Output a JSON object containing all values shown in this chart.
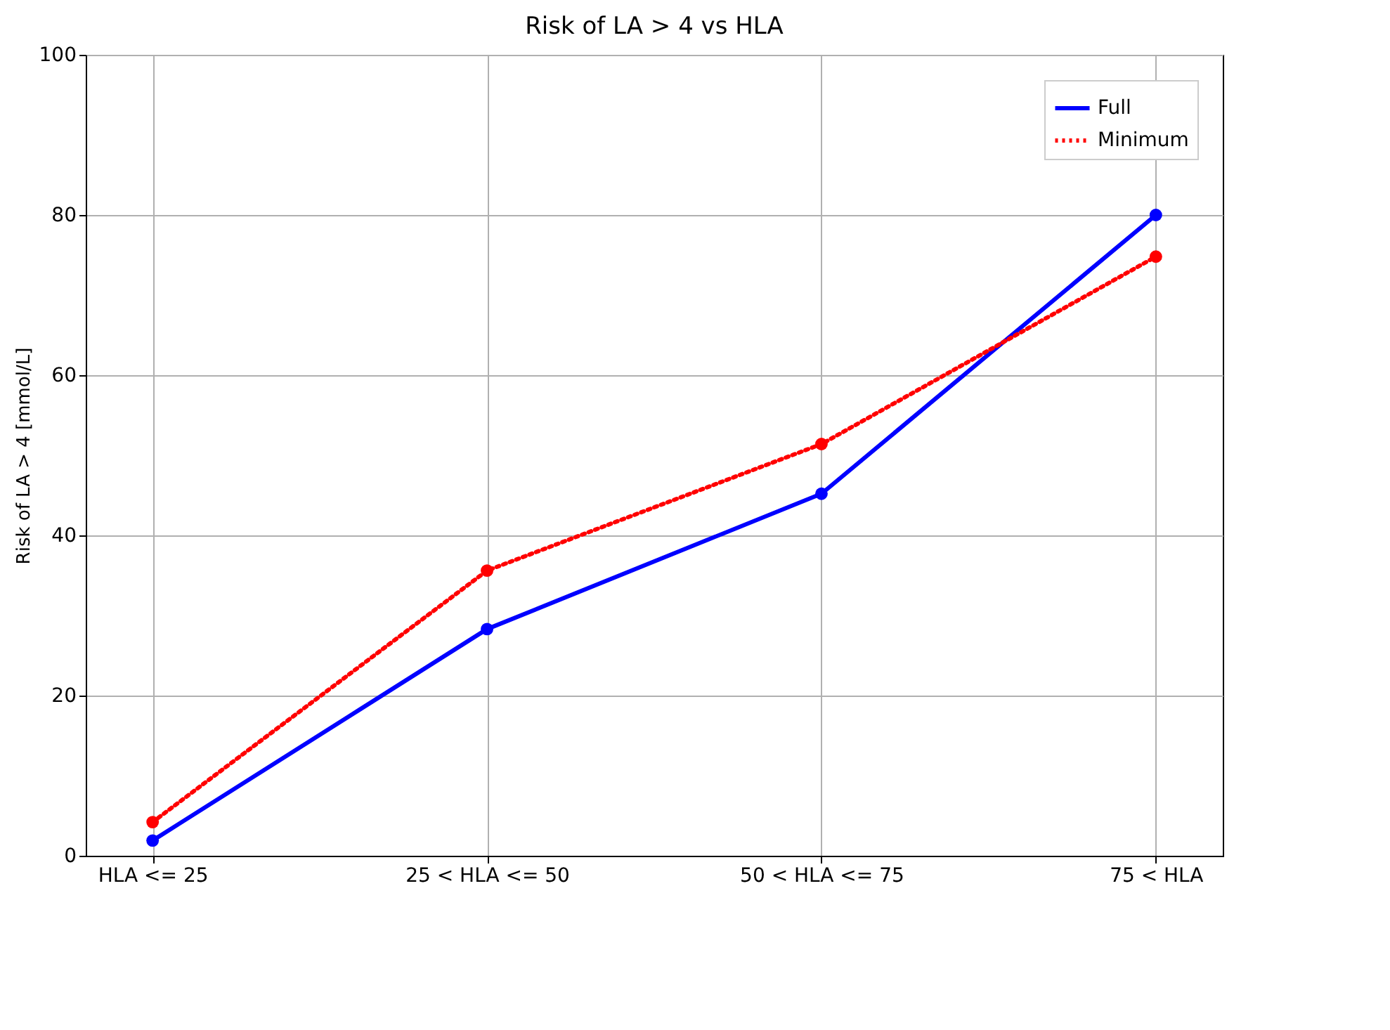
{
  "chart_data": {
    "type": "line",
    "title": "Risk of LA > 4 vs HLA",
    "ylabel": "Risk of LA > 4 [mmol/L]",
    "categories": [
      "HLA <= 25",
      "25 < HLA <= 50",
      "50 < HLA <= 75",
      "75 < HLA"
    ],
    "series": [
      {
        "name": "Full",
        "color": "#0000ff",
        "line_style": "solid",
        "values": [
          1.9,
          28.3,
          45.2,
          80.0
        ]
      },
      {
        "name": "Minimum",
        "color": "#ff0000",
        "line_style": "dotted",
        "values": [
          4.2,
          35.6,
          51.4,
          74.8
        ]
      }
    ],
    "ylim": [
      0,
      100
    ],
    "yticks": [
      0,
      20,
      40,
      60,
      80,
      100
    ],
    "grid": true,
    "legend": "top right",
    "marker": "circle"
  }
}
